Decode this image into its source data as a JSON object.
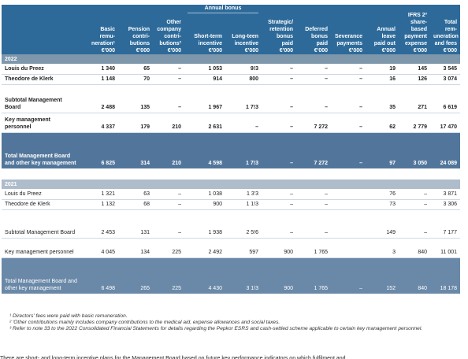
{
  "header": {
    "group_label": "Annual bonus",
    "columns": [
      {
        "lines": [
          "Basic",
          "remu-",
          "neration¹"
        ],
        "unit": "€'000"
      },
      {
        "lines": [
          "Pension",
          "contri-",
          "butions"
        ],
        "unit": "€'000"
      },
      {
        "lines": [
          "Other",
          "company",
          "contri-",
          "butions²"
        ],
        "unit": "€'000"
      },
      {
        "lines": [
          "Short-term",
          "incentive"
        ],
        "unit": "€'000"
      },
      {
        "lines": [
          "Long-teen",
          "incentive"
        ],
        "unit": "€'000"
      },
      {
        "lines": [
          "Strategic/",
          "retention",
          "bonus",
          "paid"
        ],
        "unit": "€'000"
      },
      {
        "lines": [
          "Deferred",
          "bonus",
          "paid"
        ],
        "unit": "€'000"
      },
      {
        "lines": [
          "Severance",
          "payments"
        ],
        "unit": "€'000"
      },
      {
        "lines": [
          "Annual",
          "leave",
          "paid out"
        ],
        "unit": "€'000"
      },
      {
        "lines": [
          "IFRS 2³",
          "share-",
          "based",
          "payment",
          "expense"
        ],
        "unit": "€'000"
      },
      {
        "lines": [
          "Total",
          "rem-",
          "uneration",
          "and fees"
        ],
        "unit": "€'000"
      }
    ]
  },
  "y2022": {
    "year": "2022",
    "rows": [
      {
        "label": "Louis du Preez",
        "values": [
          "1 340",
          "65",
          "–",
          "1 053",
          "9!3",
          "–",
          "–",
          "–",
          "19",
          "145",
          "3 545"
        ]
      },
      {
        "label": "Theodore de Klerk",
        "values": [
          "1 148",
          "70",
          "–",
          "914",
          "800",
          "–",
          "–",
          "–",
          "16",
          "126",
          "3 074"
        ]
      }
    ],
    "subtotal": {
      "label": "Subtotal Management Board",
      "values": [
        "2 488",
        "135",
        "–",
        "1 967",
        "1 7!3",
        "–",
        "–",
        "–",
        "35",
        "271",
        "6 619"
      ]
    },
    "kmp": {
      "label": "Key management personnel",
      "values": [
        "4 337",
        "179",
        "210",
        "2 631",
        "–",
        "–",
        "7 272",
        "–",
        "62",
        "2 779",
        "17 470"
      ]
    },
    "total": {
      "label": "Total Management Board and other key management",
      "values": [
        "6 825",
        "314",
        "210",
        "4 598",
        "1 7!3",
        "–",
        "7 272",
        "–",
        "97",
        "3 050",
        "24 089"
      ]
    }
  },
  "y2021": {
    "year": "2021",
    "rows": [
      {
        "label": "Louis du Preez",
        "values": [
          "1 321",
          "63",
          "–",
          "1 038",
          "1 3'3",
          "–",
          "–",
          "",
          "76",
          "–",
          "3 871"
        ]
      },
      {
        "label": "Theodore de Klerk",
        "values": [
          "1 132",
          "68",
          "–",
          "900",
          "1 1!3",
          "–",
          "–",
          "",
          "73",
          "–",
          "3 306"
        ]
      }
    ],
    "subtotal": {
      "label": "Subtotal Management Board",
      "values": [
        "2 453",
        "131",
        "–",
        "1 938",
        "2 5!6",
        "–",
        "–",
        "",
        "149",
        "–",
        "7 177"
      ]
    },
    "kmp": {
      "label": "Key management personnel",
      "values": [
        "4 045",
        "134",
        "225",
        "2 492",
        "597",
        "900",
        "1 765",
        "",
        "3",
        "840",
        "11 001"
      ]
    },
    "total": {
      "label": "Total Management Board and other key management",
      "values": [
        "6 498",
        "265",
        "225",
        "4 430",
        "3 1!3",
        "900",
        "1 765",
        "–",
        "152",
        "840",
        "18 178"
      ]
    }
  },
  "footnotes": [
    "¹ Directors' fees were paid with basic remuneration.",
    "² 'Other contributions mainly includes company contributions to the medical aid, expense allowances and social taxes.",
    "³ Refer to note 33 to the 2022 Consolidated Financial Statements for details regarding the Pepkor ESRS and cash-settled scheme applicable to certain key management personnel."
  ],
  "trailing_text": "There are short- and long-term incentive plans for the Management Board based on future key performance indicators on which fulfilment and"
}
